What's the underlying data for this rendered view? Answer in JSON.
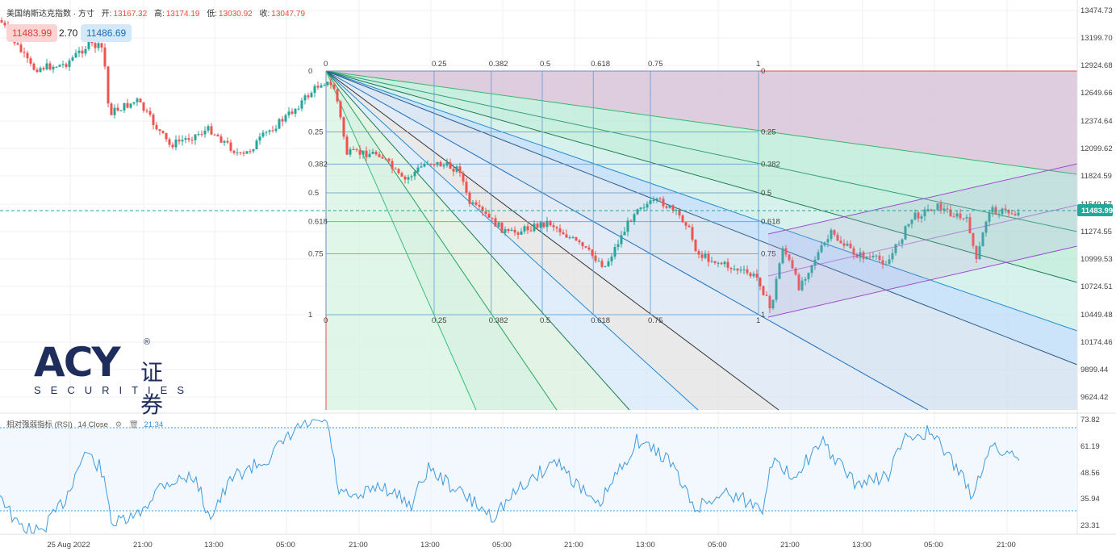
{
  "header": {
    "title": "美国纳斯达克指数 · 方寸",
    "open_label": "开:",
    "open_value": "13167.32",
    "high_label": "高:",
    "high_value": "13174.19",
    "low_label": "低:",
    "low_value": "13030.92",
    "close_label": "收:",
    "close_value": "13047.79"
  },
  "quote": {
    "bid": "11483.99",
    "spread": "2.70",
    "ask": "11486.69"
  },
  "price_axis": {
    "labels": [
      "13474.73",
      "13199.70",
      "12924.68",
      "12649.66",
      "12374.64",
      "12099.62",
      "11824.59",
      "11549.57",
      "11274.55",
      "10999.53",
      "10724.51",
      "10449.48",
      "10174.46",
      "9899.44",
      "9624.42"
    ],
    "current_price": "11483.99"
  },
  "time_axis": {
    "labels": [
      "25 Aug 2022",
      "21:00",
      "13:00",
      "05:00",
      "21:00",
      "13:00",
      "05:00",
      "21:00",
      "13:00",
      "05:00",
      "21:00",
      "13:00",
      "05:00",
      "21:00"
    ]
  },
  "fib_box": {
    "levels": [
      "0",
      "0.25",
      "0.382",
      "0.5",
      "0.618",
      "0.75",
      "1"
    ]
  },
  "rsi": {
    "title": "相对强弱指标 (RSI)",
    "params": "14 Close",
    "value": "21.34",
    "axis_labels": [
      "73.82",
      "61.19",
      "48.56",
      "35.94",
      "23.31"
    ]
  },
  "logo": {
    "mark": "ACY",
    "cn": "证券",
    "sub": "SECURITIES",
    "reg": "®"
  },
  "colors": {
    "up": "#26a69a",
    "down": "#ef5350",
    "rsi_line": "#3d9be0",
    "channel": "#9c4dcc"
  }
}
